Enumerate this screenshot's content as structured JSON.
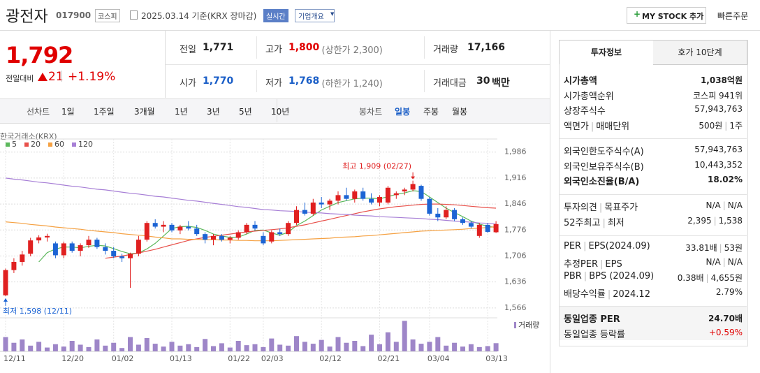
{
  "header": {
    "name": "광전자",
    "code": "017900",
    "market": "코스피",
    "date": "2025.03.14 기준(KRX 장마감)",
    "realtime": "실시간",
    "overview": "기업개요",
    "mystock": "MY STOCK 추가",
    "quick_order": "빠른주문"
  },
  "price": {
    "current": "1,792",
    "change_label": "전일대비",
    "change": "21",
    "change_pct": "+1.19%"
  },
  "summary": [
    [
      {
        "label": "전일",
        "value": "1,771"
      },
      {
        "label": "고가",
        "value": "1,800",
        "color": "#e00000",
        "note": "(상한가 2,300)"
      },
      {
        "label": "거래량",
        "value": "17,166"
      }
    ],
    [
      {
        "label": "시가",
        "value": "1,770",
        "color": "#1a5ec7"
      },
      {
        "label": "저가",
        "value": "1,768",
        "color": "#1a5ec7",
        "note": "(하한가 1,240)"
      },
      {
        "label": "거래대금",
        "value": "30",
        "unit": "백만"
      }
    ]
  ],
  "tabs": {
    "line": "선차트",
    "line_periods": [
      "1일",
      "1주일",
      "3개월",
      "1년",
      "3년",
      "5년",
      "10년"
    ],
    "candle": "봉차트",
    "candle_periods": [
      "일봉",
      "주봉",
      "월봉"
    ],
    "active": "일봉"
  },
  "chart_data": {
    "type": "candlestick",
    "source": "한국거래소(KRX)",
    "categories": [
      "12/11",
      null,
      null,
      null,
      null,
      null,
      null,
      "12/20",
      null,
      null,
      null,
      null,
      null,
      "01/02",
      null,
      null,
      null,
      null,
      null,
      null,
      "01/13",
      null,
      null,
      null,
      null,
      null,
      null,
      "01/22",
      null,
      null,
      null,
      "02/03",
      null,
      null,
      null,
      null,
      null,
      null,
      "02/12",
      null,
      null,
      null,
      null,
      null,
      null,
      "02/21",
      null,
      null,
      null,
      null,
      null,
      "03/04",
      null,
      null,
      null,
      null,
      null,
      null,
      "03/13",
      null
    ],
    "open": [
      1600,
      1668,
      1690,
      1712,
      1748,
      1756,
      1740,
      1708,
      1740,
      1720,
      1735,
      1750,
      1730,
      1720,
      1705,
      1700,
      1712,
      1750,
      1795,
      1785,
      1790,
      1775,
      1785,
      1780,
      1765,
      1750,
      1760,
      1750,
      1755,
      1770,
      1790,
      1760,
      1745,
      1770,
      1765,
      1795,
      1830,
      1820,
      1850,
      1845,
      1855,
      1870,
      1860,
      1880,
      1860,
      1850,
      1850,
      1870,
      1880,
      1885,
      1895,
      1860,
      1820,
      1810,
      1830,
      1805,
      1795,
      1760,
      1790,
      1770
    ],
    "high": [
      1672,
      1700,
      1720,
      1755,
      1762,
      1766,
      1745,
      1745,
      1745,
      1740,
      1760,
      1755,
      1740,
      1730,
      1712,
      1715,
      1760,
      1800,
      1805,
      1800,
      1795,
      1790,
      1800,
      1790,
      1770,
      1765,
      1765,
      1760,
      1775,
      1795,
      1800,
      1770,
      1775,
      1780,
      1800,
      1840,
      1850,
      1860,
      1865,
      1860,
      1880,
      1890,
      1885,
      1890,
      1875,
      1870,
      1895,
      1880,
      1890,
      1909,
      1898,
      1865,
      1835,
      1840,
      1835,
      1810,
      1800,
      1795,
      1795,
      1800
    ],
    "low": [
      1598,
      1660,
      1680,
      1705,
      1740,
      1745,
      1700,
      1700,
      1715,
      1705,
      1728,
      1725,
      1710,
      1700,
      1690,
      1620,
      1705,
      1745,
      1780,
      1770,
      1770,
      1765,
      1775,
      1760,
      1740,
      1735,
      1745,
      1740,
      1750,
      1765,
      1775,
      1735,
      1740,
      1760,
      1760,
      1790,
      1815,
      1815,
      1835,
      1830,
      1845,
      1855,
      1850,
      1855,
      1845,
      1840,
      1845,
      1860,
      1870,
      1880,
      1855,
      1815,
      1800,
      1805,
      1800,
      1790,
      1780,
      1755,
      1768,
      1768
    ],
    "close": [
      1668,
      1690,
      1710,
      1748,
      1756,
      1760,
      1708,
      1740,
      1720,
      1735,
      1750,
      1730,
      1720,
      1705,
      1700,
      1712,
      1750,
      1795,
      1785,
      1790,
      1775,
      1785,
      1780,
      1765,
      1750,
      1760,
      1750,
      1755,
      1770,
      1790,
      1780,
      1740,
      1770,
      1765,
      1795,
      1830,
      1820,
      1850,
      1845,
      1855,
      1870,
      1860,
      1880,
      1860,
      1850,
      1865,
      1890,
      1875,
      1885,
      1900,
      1860,
      1820,
      1810,
      1830,
      1805,
      1795,
      1785,
      1790,
      1771,
      1792
    ],
    "up_color": "#e02020",
    "down_color": "#1c64d4",
    "moving_averages": [
      {
        "name": "5",
        "color": "#5cb85c",
        "values": [
          null,
          null,
          null,
          null,
          1690,
          1715,
          1725,
          1730,
          1730,
          1728,
          1732,
          1735,
          1733,
          1726,
          1718,
          1712,
          1714,
          1725,
          1740,
          1760,
          1780,
          1785,
          1786,
          1783,
          1775,
          1765,
          1760,
          1756,
          1757,
          1765,
          1775,
          1776,
          1768,
          1762,
          1770,
          1788,
          1800,
          1815,
          1830,
          1840,
          1850,
          1855,
          1860,
          1862,
          1862,
          1860,
          1866,
          1872,
          1876,
          1882,
          1880,
          1865,
          1850,
          1835,
          1823,
          1812,
          1800,
          1792,
          1786,
          1783
        ]
      },
      {
        "name": "20",
        "color": "#e8504a",
        "values": [
          null,
          null,
          null,
          null,
          null,
          null,
          null,
          null,
          null,
          null,
          null,
          null,
          1700,
          1703,
          1706,
          1710,
          1714,
          1719,
          1724,
          1730,
          1736,
          1742,
          1748,
          1752,
          1756,
          1759,
          1762,
          1765,
          1768,
          1771,
          1773,
          1775,
          1777,
          1779,
          1782,
          1786,
          1790,
          1795,
          1800,
          1805,
          1810,
          1815,
          1820,
          1825,
          1829,
          1833,
          1836,
          1839,
          1841,
          1843,
          1845,
          1846,
          1846,
          1845,
          1844,
          1842,
          1840,
          1838,
          1836,
          1835
        ]
      },
      {
        "name": "60",
        "color": "#f5a142",
        "values": [
          1798,
          1796,
          1794,
          1791,
          1789,
          1787,
          1784,
          1782,
          1780,
          1778,
          1775,
          1773,
          1771,
          1769,
          1766,
          1764,
          1762,
          1760,
          1757,
          1755,
          1752,
          1752,
          1751,
          1751,
          1750,
          1750,
          1749,
          1749,
          1748,
          1748,
          1747,
          1747,
          1747,
          1748,
          1749,
          1750,
          1751,
          1752,
          1753,
          1754,
          1756,
          1757,
          1758,
          1760,
          1761,
          1763,
          1765,
          1767,
          1769,
          1771,
          1773,
          1774,
          1775,
          1776,
          1777,
          1778,
          1780,
          1781,
          1783,
          1785
        ]
      },
      {
        "name": "120",
        "color": "#a77fd6",
        "values": [
          1916,
          1913,
          1911,
          1908,
          1905,
          1903,
          1900,
          1897,
          1894,
          1892,
          1889,
          1886,
          1884,
          1881,
          1878,
          1875,
          1873,
          1870,
          1867,
          1865,
          1862,
          1859,
          1856,
          1854,
          1851,
          1848,
          1845,
          1842,
          1839,
          1837,
          1834,
          1831,
          1830,
          1828,
          1827,
          1826,
          1824,
          1823,
          1822,
          1820,
          1819,
          1818,
          1816,
          1815,
          1814,
          1812,
          1811,
          1810,
          1809,
          1808,
          1807,
          1805,
          1804,
          1802,
          1800,
          1799,
          1797,
          1795,
          1794,
          1792
        ]
      }
    ],
    "volume": {
      "name": "거래량",
      "color": "#9e86c8",
      "ylim": [
        0,
        66000
      ],
      "values": [
        30000,
        18000,
        25000,
        12000,
        20000,
        8000,
        15000,
        10000,
        22000,
        14000,
        9000,
        25000,
        12000,
        18000,
        7000,
        30000,
        14000,
        28000,
        16000,
        10000,
        20000,
        12000,
        15000,
        9000,
        26000,
        11000,
        17000,
        8000,
        22000,
        13000,
        15000,
        9000,
        27000,
        14000,
        12000,
        32000,
        20000,
        16000,
        24000,
        10000,
        30000,
        18000,
        22000,
        11000,
        35000,
        15000,
        40000,
        20000,
        64000,
        25000,
        16000,
        20000,
        30000,
        12000,
        18000,
        10000,
        15000,
        9000,
        11000,
        17166
      ]
    },
    "ylim": [
      1545,
      2010
    ],
    "yticks": [
      {
        "value": 1566,
        "label": "1,566"
      },
      {
        "value": 1636,
        "label": "1,636"
      },
      {
        "value": 1706,
        "label": "1,706"
      },
      {
        "value": 1776,
        "label": "1,776"
      },
      {
        "value": 1846,
        "label": "1,846"
      },
      {
        "value": 1916,
        "label": "1,916"
      },
      {
        "value": 1986,
        "label": "1,986"
      }
    ],
    "annotations": [
      {
        "text": "최고 1,909 (02/27)",
        "index": 49,
        "value": 1909
      },
      {
        "text": "최저 1,598 (12/11)",
        "index": 0,
        "value": 1598
      }
    ],
    "grid": true
  },
  "info": {
    "tabs": [
      "투자정보",
      "호가 10단계"
    ],
    "groups": [
      [
        {
          "label": [
            "시가총액"
          ],
          "value": [
            "1,038억원"
          ],
          "bold": true
        },
        {
          "label": [
            "시가총액순위"
          ],
          "value": [
            "코스피 941위"
          ]
        },
        {
          "label": [
            "상장주식수"
          ],
          "value": [
            "57,943,763"
          ]
        },
        {
          "label": [
            "액면가",
            "매매단위"
          ],
          "value": [
            "500원",
            "1주"
          ]
        }
      ],
      [
        {
          "label": [
            "외국인한도주식수(A)"
          ],
          "value": [
            "57,943,763"
          ]
        },
        {
          "label": [
            "외국인보유주식수(B)"
          ],
          "value": [
            "10,443,352"
          ]
        },
        {
          "label": [
            "외국인소진율(B/A)"
          ],
          "value": [
            "18.02%"
          ],
          "bold": true
        }
      ],
      [
        {
          "label": [
            "투자의견",
            "목표주가"
          ],
          "value": [
            "N/A",
            "N/A"
          ]
        },
        {
          "label": [
            "52주최고",
            "최저"
          ],
          "value": [
            "2,395",
            "1,538"
          ]
        }
      ],
      [
        {
          "label": [
            "PER",
            "EPS(2024.09)"
          ],
          "value": [
            "33.81배",
            "53원"
          ]
        },
        {
          "label": [
            "추정PER",
            "EPS"
          ],
          "value": [
            "N/A",
            "N/A"
          ]
        },
        {
          "label": [
            "PBR",
            "BPS (2024.09)"
          ],
          "value": [
            "0.38배",
            "4,655원"
          ]
        },
        {
          "label": [
            "배당수익률",
            "2024.12"
          ],
          "value": [
            "2.79%"
          ]
        }
      ],
      [
        {
          "label": [
            "동일업종 PER"
          ],
          "value": [
            "24.70배"
          ],
          "bold": true
        },
        {
          "label": [
            "동일업종 등락률"
          ],
          "value": [
            "+0.59%"
          ],
          "color": "#e00000"
        }
      ]
    ]
  }
}
